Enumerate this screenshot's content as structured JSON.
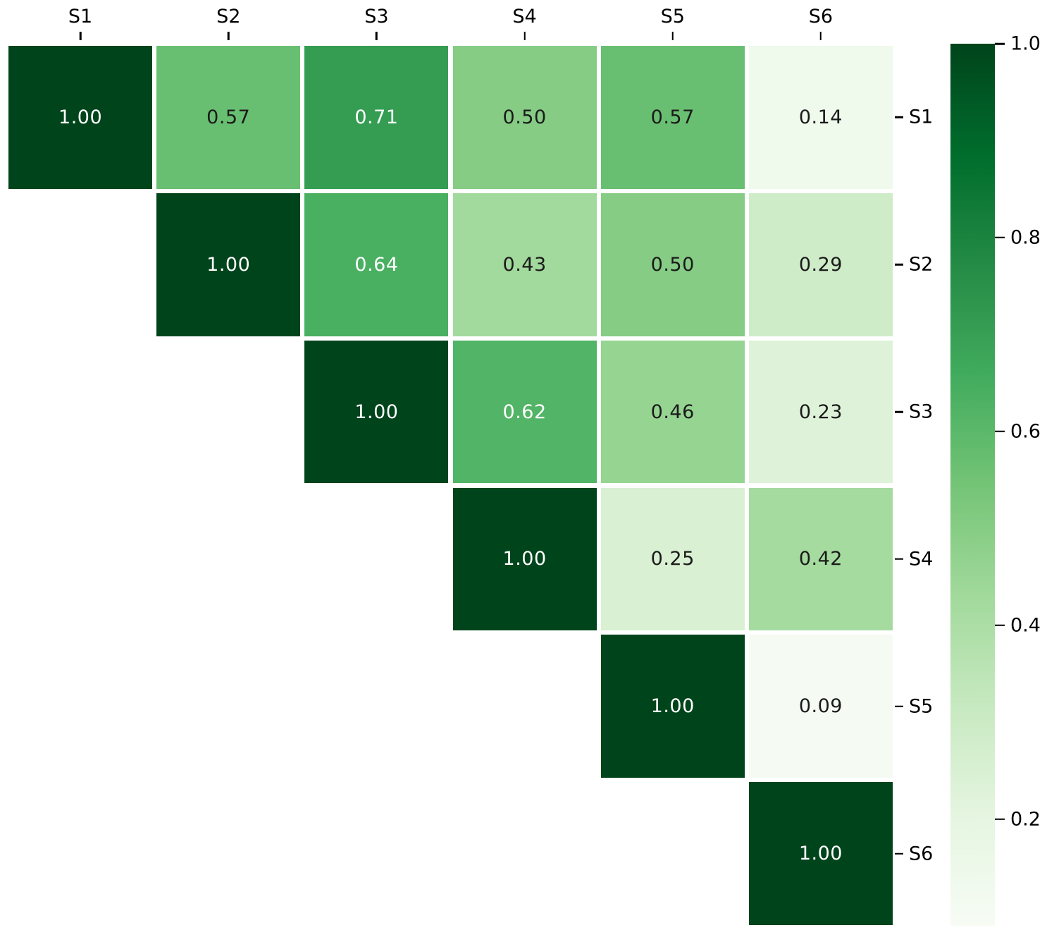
{
  "chart_data": {
    "type": "heatmap",
    "title": "",
    "description": "Upper-triangular correlation matrix heatmap with Greens colormap",
    "labels": [
      "S1",
      "S2",
      "S3",
      "S4",
      "S5",
      "S6"
    ],
    "matrix": [
      [
        "1.00",
        "0.57",
        "0.71",
        "0.50",
        "0.57",
        "0.14"
      ],
      [
        null,
        "1.00",
        "0.64",
        "0.43",
        "0.50",
        "0.29"
      ],
      [
        null,
        null,
        "1.00",
        "0.62",
        "0.46",
        "0.23"
      ],
      [
        null,
        null,
        null,
        "1.00",
        "0.25",
        "0.42"
      ],
      [
        null,
        null,
        null,
        null,
        "1.00",
        "0.09"
      ],
      [
        null,
        null,
        null,
        null,
        null,
        "1.00"
      ]
    ],
    "colormap": "Greens",
    "vmin": 0.09,
    "vmax": 1.0,
    "value_colors": {
      "1.00": "#00441b",
      "0.71": "#349d52",
      "0.64": "#49af61",
      "0.62": "#52b466",
      "0.57": "#69bf71",
      "0.50": "#86cc85",
      "0.46": "#96d492",
      "0.43": "#a2d99c",
      "0.42": "#a5db9f",
      "0.29": "#ceecc8",
      "0.25": "#d9f0d3",
      "0.23": "#def2d9",
      "0.14": "#eff9ec",
      "0.09": "#f5fbf3"
    },
    "white_text_values": [
      "1.00",
      "0.71",
      "0.64",
      "0.62"
    ],
    "annotation_text_colors": {
      "light": "#ffffff",
      "dark": "#1a1a1a"
    },
    "colorbar": {
      "tick_labels": [
        "1.0",
        "0.8",
        "0.6",
        "0.4",
        "0.2"
      ],
      "tick_values": [
        1.0,
        0.8,
        0.6,
        0.4,
        0.2
      ],
      "gradient_stops_bottom_to_top": [
        "#f7fcf5",
        "#e5f5e0",
        "#c7e9c0",
        "#a1d99b",
        "#74c476",
        "#41ab5d",
        "#238b45",
        "#006d2c",
        "#00441b"
      ]
    },
    "legend_position": "right",
    "grid_lines": "white"
  }
}
